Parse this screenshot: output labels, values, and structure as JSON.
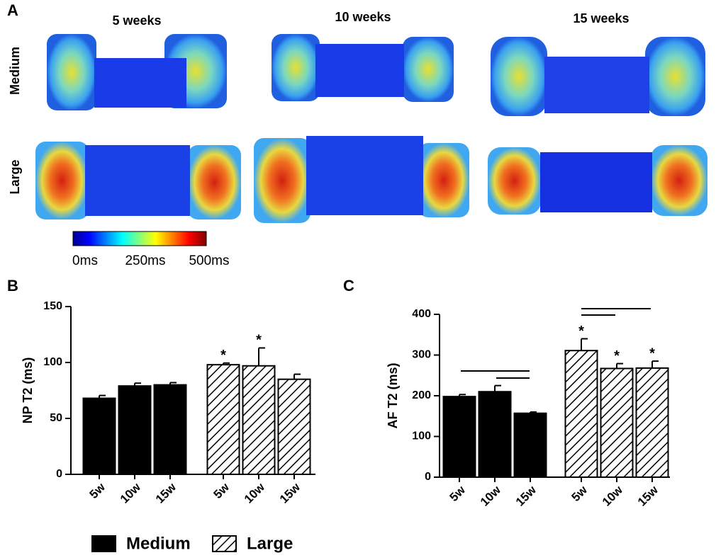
{
  "panel_labels": {
    "a": "A",
    "b": "B",
    "c": "C"
  },
  "image_grid": {
    "columns": [
      "5 weeks",
      "10 weeks",
      "15 weeks"
    ],
    "rows": [
      "Medium",
      "Large"
    ]
  },
  "colorbar": {
    "labels": [
      "0ms",
      "250ms",
      "500ms"
    ]
  },
  "chart_data": [
    {
      "type": "bar",
      "ylabel": "NP T2 (ms)",
      "categories": [
        "5w",
        "10w",
        "15w",
        "5w",
        "10w",
        "15w"
      ],
      "series": [
        {
          "name": "Medium",
          "color": "#000000",
          "values": [
            68,
            79,
            80,
            null,
            null,
            null
          ],
          "errors": [
            2.5,
            2.5,
            2,
            null,
            null,
            null
          ]
        },
        {
          "name": "Large",
          "color": "#000000",
          "hatch": true,
          "values": [
            null,
            null,
            null,
            98,
            97,
            85
          ],
          "errors": [
            null,
            null,
            null,
            1.5,
            16,
            4.5
          ]
        }
      ],
      "significance": [
        null,
        null,
        null,
        "*",
        "*",
        null
      ],
      "ylim": [
        0,
        150
      ],
      "yticks": [
        0,
        50,
        100,
        150
      ],
      "legend": "bottom"
    },
    {
      "type": "bar",
      "ylabel": "AF T2 (ms)",
      "categories": [
        "5w",
        "10w",
        "15w",
        "5w",
        "10w",
        "15w"
      ],
      "series": [
        {
          "color": "#000000",
          "values": [
            198,
            210,
            157,
            null,
            null,
            null
          ],
          "errors": [
            5,
            15,
            3,
            null,
            null,
            null
          ]
        },
        {
          "color": "#000000",
          "hatch": true,
          "values": [
            null,
            null,
            null,
            311,
            267,
            268
          ],
          "errors": [
            null,
            null,
            null,
            29,
            12,
            17
          ]
        }
      ],
      "significance": [
        null,
        null,
        null,
        "*",
        "*",
        "*"
      ],
      "ylim": [
        0,
        400
      ],
      "yticks": [
        0,
        100,
        200,
        300,
        400
      ]
    }
  ]
}
